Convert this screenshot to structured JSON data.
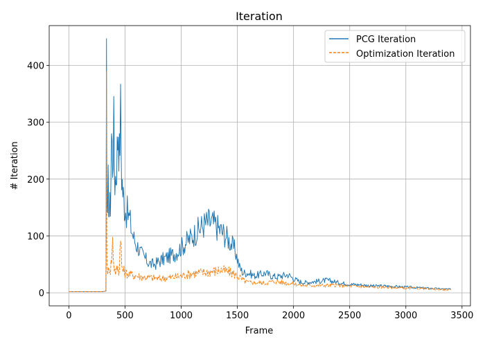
{
  "chart_data": {
    "type": "line",
    "title": "Iteration",
    "xlabel": "Frame",
    "ylabel": "# Iteration",
    "xlim": [
      -175,
      3575
    ],
    "ylim": [
      -23,
      470
    ],
    "xticks": [
      0,
      500,
      1000,
      1500,
      2000,
      2500,
      3000,
      3500
    ],
    "yticks": [
      0,
      100,
      200,
      300,
      400
    ],
    "grid": true,
    "legend_position": "top-right",
    "series": [
      {
        "name": "PCG Iteration",
        "color": "#1f77b4",
        "style": "solid",
        "x": [
          0,
          100,
          200,
          300,
          330,
          335,
          338,
          340,
          345,
          350,
          360,
          370,
          380,
          390,
          400,
          410,
          420,
          430,
          440,
          450,
          460,
          470,
          480,
          490,
          500,
          520,
          540,
          560,
          580,
          600,
          620,
          640,
          660,
          680,
          700,
          720,
          740,
          760,
          780,
          800,
          850,
          900,
          950,
          1000,
          1050,
          1100,
          1150,
          1200,
          1250,
          1300,
          1350,
          1400,
          1450,
          1480,
          1500,
          1520,
          1550,
          1600,
          1650,
          1700,
          1750,
          1800,
          1850,
          1900,
          1950,
          2000,
          2050,
          2100,
          2200,
          2300,
          2400,
          2500,
          2600,
          2700,
          2800,
          2900,
          3000,
          3100,
          3200,
          3300,
          3400
        ],
        "values": [
          2,
          2,
          2,
          2,
          3,
          447,
          200,
          150,
          120,
          190,
          140,
          160,
          280,
          230,
          290,
          200,
          210,
          250,
          300,
          240,
          320,
          210,
          180,
          160,
          150,
          140,
          130,
          110,
          95,
          85,
          80,
          70,
          65,
          60,
          55,
          52,
          50,
          50,
          52,
          55,
          60,
          65,
          70,
          80,
          90,
          100,
          110,
          120,
          125,
          120,
          110,
          100,
          85,
          75,
          60,
          45,
          35,
          35,
          30,
          32,
          35,
          30,
          28,
          30,
          32,
          25,
          20,
          18,
          20,
          22,
          18,
          15,
          14,
          12,
          12,
          11,
          10,
          9,
          8,
          7,
          6
        ]
      },
      {
        "name": "Optimization Iteration",
        "color": "#ff7f0e",
        "style": "dashed",
        "x": [
          0,
          100,
          200,
          300,
          330,
          335,
          338,
          340,
          345,
          350,
          360,
          370,
          380,
          390,
          400,
          410,
          420,
          430,
          440,
          450,
          460,
          470,
          480,
          490,
          500,
          550,
          600,
          650,
          700,
          750,
          800,
          850,
          900,
          950,
          1000,
          1050,
          1100,
          1150,
          1200,
          1250,
          1300,
          1350,
          1400,
          1450,
          1500,
          1550,
          1600,
          1650,
          1700,
          1750,
          1800,
          1850,
          1900,
          1950,
          2000,
          2050,
          2100,
          2200,
          2300,
          2400,
          2500,
          2600,
          2700,
          2800,
          2900,
          3000,
          3100,
          3200,
          3300,
          3400
        ],
        "values": [
          2,
          2,
          2,
          2,
          3,
          390,
          90,
          50,
          40,
          35,
          45,
          40,
          60,
          90,
          50,
          40,
          35,
          45,
          40,
          38,
          120,
          45,
          40,
          38,
          35,
          32,
          30,
          28,
          27,
          26,
          25,
          26,
          27,
          28,
          30,
          32,
          34,
          35,
          36,
          37,
          38,
          40,
          38,
          35,
          30,
          22,
          18,
          18,
          18,
          17,
          19,
          20,
          18,
          17,
          16,
          14,
          13,
          13,
          13,
          13,
          12,
          11,
          10,
          10,
          9,
          8,
          8,
          7,
          6,
          5
        ]
      }
    ]
  }
}
